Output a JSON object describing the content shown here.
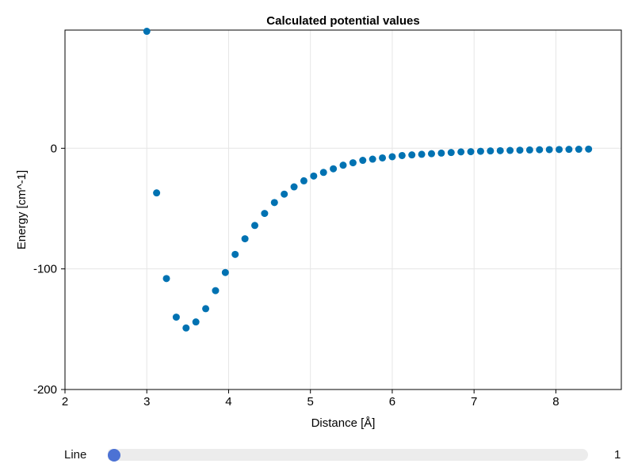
{
  "chart_data": {
    "type": "scatter",
    "title": "Calculated potential values",
    "xlabel": "Distance   [Å]",
    "ylabel": "Energy   [cm^-1]",
    "xlim": [
      2,
      8.8
    ],
    "ylim": [
      -200,
      98
    ],
    "xticks": [
      "2",
      "3",
      "4",
      "5",
      "6",
      "7",
      "8"
    ],
    "yticks": [
      "-200",
      "-100",
      "0"
    ],
    "grid": true,
    "marker_color": "#0072b2",
    "x": [
      3.0,
      3.12,
      3.24,
      3.36,
      3.48,
      3.6,
      3.72,
      3.84,
      3.96,
      4.08,
      4.2,
      4.32,
      4.44,
      4.56,
      4.68,
      4.8,
      4.92,
      5.04,
      5.16,
      5.28,
      5.4,
      5.52,
      5.64,
      5.76,
      5.88,
      6.0,
      6.12,
      6.24,
      6.36,
      6.48,
      6.6,
      6.72,
      6.84,
      6.96,
      7.08,
      7.2,
      7.32,
      7.44,
      7.56,
      7.68,
      7.8,
      7.92,
      8.04,
      8.16,
      8.28,
      8.4
    ],
    "y": [
      97,
      -37,
      -108,
      -140,
      -149,
      -144,
      -133,
      -118,
      -103,
      -88,
      -75,
      -64,
      -54,
      -45,
      -38,
      -32,
      -27,
      -23,
      -20,
      -17,
      -14,
      -12,
      -10,
      -9,
      -8,
      -7,
      -6,
      -5.5,
      -5,
      -4.5,
      -4,
      -3.5,
      -3,
      -2.8,
      -2.5,
      -2.2,
      -2,
      -1.8,
      -1.6,
      -1.4,
      -1.2,
      -1.1,
      -1,
      -0.9,
      -0.8,
      -0.7
    ]
  },
  "slider": {
    "label": "Line",
    "value": "1",
    "position_fraction": 0.0,
    "knob_color": "#4c72d4"
  }
}
